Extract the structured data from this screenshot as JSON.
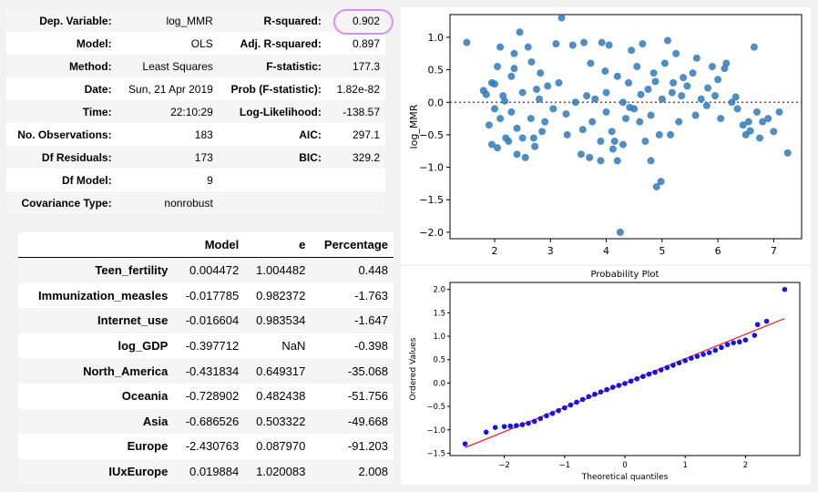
{
  "summary": {
    "rows": [
      {
        "l1": "Dep. Variable:",
        "v1": "log_MMR",
        "l2": "R-squared:",
        "v2": "0.902"
      },
      {
        "l1": "Model:",
        "v1": "OLS",
        "l2": "Adj. R-squared:",
        "v2": "0.897"
      },
      {
        "l1": "Method:",
        "v1": "Least Squares",
        "l2": "F-statistic:",
        "v2": "177.3"
      },
      {
        "l1": "Date:",
        "v1": "Sun, 21 Apr 2019",
        "l2": "Prob (F-statistic):",
        "v2": "1.82e-82"
      },
      {
        "l1": "Time:",
        "v1": "22:10:29",
        "l2": "Log-Likelihood:",
        "v2": "-138.57"
      },
      {
        "l1": "No. Observations:",
        "v1": "183",
        "l2": "AIC:",
        "v2": "297.1"
      },
      {
        "l1": "Df Residuals:",
        "v1": "173",
        "l2": "BIC:",
        "v2": "329.2"
      },
      {
        "l1": "Df Model:",
        "v1": "9",
        "l2": "",
        "v2": ""
      },
      {
        "l1": "Covariance Type:",
        "v1": "nonrobust",
        "l2": "",
        "v2": ""
      }
    ]
  },
  "coef_table": {
    "headers": [
      "",
      "Model",
      "e",
      "Percentage"
    ],
    "rows": [
      [
        "Teen_fertility",
        "0.004472",
        "1.004482",
        "0.448"
      ],
      [
        "Immunization_measles",
        "-0.017785",
        "0.982372",
        "-1.763"
      ],
      [
        "Internet_use",
        "-0.016604",
        "0.983534",
        "-1.647"
      ],
      [
        "log_GDP",
        "-0.397712",
        "NaN",
        "-0.398"
      ],
      [
        "North_America",
        "-0.431834",
        "0.649317",
        "-35.068"
      ],
      [
        "Oceania",
        "-0.728902",
        "0.482438",
        "-51.756"
      ],
      [
        "Asia",
        "-0.686526",
        "0.503322",
        "-49.668"
      ],
      [
        "Europe",
        "-2.430763",
        "0.087970",
        "-91.203"
      ],
      [
        "IUxEurope",
        "0.019884",
        "1.020083",
        "2.008"
      ]
    ]
  },
  "chart_data": [
    {
      "type": "scatter",
      "title": "",
      "xlabel": "",
      "ylabel": "log_MMR",
      "xlim": [
        1.2,
        7.5
      ],
      "ylim": [
        -2.1,
        1.35
      ],
      "xticks": [
        "2",
        "3",
        "4",
        "5",
        "6",
        "7"
      ],
      "yticks": [
        "1.0",
        "0.5",
        "0.0",
        "−0.5",
        "−1.0",
        "−1.5",
        "−2.0"
      ],
      "reference_line": {
        "y": 0,
        "style": "dotted"
      },
      "color": "#2f7ab9",
      "points": [
        [
          1.5,
          0.92
        ],
        [
          1.8,
          0.18
        ],
        [
          1.85,
          0.12
        ],
        [
          1.9,
          -0.35
        ],
        [
          1.95,
          0.3
        ],
        [
          2.0,
          0.28
        ],
        [
          2.0,
          -0.1
        ],
        [
          1.95,
          -0.65
        ],
        [
          2.05,
          0.55
        ],
        [
          2.05,
          -0.7
        ],
        [
          2.1,
          0.85
        ],
        [
          2.1,
          -0.25
        ],
        [
          2.15,
          0.1
        ],
        [
          2.2,
          -0.55
        ],
        [
          2.25,
          -0.6
        ],
        [
          2.3,
          0.4
        ],
        [
          2.3,
          -0.15
        ],
        [
          2.35,
          0.75
        ],
        [
          2.4,
          -0.8
        ],
        [
          2.4,
          -0.4
        ],
        [
          2.45,
          1.08
        ],
        [
          2.5,
          0.15
        ],
        [
          2.5,
          -0.55
        ],
        [
          2.55,
          -0.85
        ],
        [
          2.6,
          0.85
        ],
        [
          2.65,
          -0.25
        ],
        [
          2.7,
          -0.55
        ],
        [
          2.75,
          0.2
        ],
        [
          2.8,
          0.05
        ],
        [
          2.85,
          -0.45
        ],
        [
          2.9,
          -0.3
        ],
        [
          2.95,
          0.25
        ],
        [
          3.05,
          -0.1
        ],
        [
          3.1,
          0.9
        ],
        [
          3.15,
          0.3
        ],
        [
          3.2,
          1.3
        ],
        [
          3.3,
          -0.5
        ],
        [
          3.4,
          0.88
        ],
        [
          3.45,
          0.0
        ],
        [
          3.55,
          -0.8
        ],
        [
          3.6,
          0.92
        ],
        [
          3.65,
          0.1
        ],
        [
          3.7,
          -0.85
        ],
        [
          3.75,
          -0.3
        ],
        [
          3.8,
          0.05
        ],
        [
          3.9,
          -0.6
        ],
        [
          3.9,
          -0.9
        ],
        [
          4.0,
          0.15
        ],
        [
          4.0,
          -0.15
        ],
        [
          4.05,
          0.88
        ],
        [
          4.1,
          -0.45
        ],
        [
          4.15,
          -0.6
        ],
        [
          4.2,
          0.4
        ],
        [
          4.2,
          -0.9
        ],
        [
          4.25,
          -2.0
        ],
        [
          4.3,
          0.0
        ],
        [
          4.3,
          -0.65
        ],
        [
          4.35,
          -0.25
        ],
        [
          4.4,
          0.3
        ],
        [
          4.45,
          0.8
        ],
        [
          4.5,
          -0.1
        ],
        [
          4.55,
          0.55
        ],
        [
          4.6,
          -0.3
        ],
        [
          4.65,
          0.9
        ],
        [
          4.7,
          -0.6
        ],
        [
          4.75,
          0.2
        ],
        [
          4.8,
          -0.9
        ],
        [
          4.8,
          -0.2
        ],
        [
          4.85,
          0.45
        ],
        [
          4.9,
          -1.3
        ],
        [
          4.95,
          -0.5
        ],
        [
          5.0,
          0.05
        ],
        [
          5.05,
          0.6
        ],
        [
          5.1,
          0.95
        ],
        [
          5.15,
          -0.5
        ],
        [
          5.2,
          0.3
        ],
        [
          5.25,
          0.75
        ],
        [
          5.3,
          -0.3
        ],
        [
          5.35,
          0.1
        ],
        [
          5.45,
          0.25
        ],
        [
          5.55,
          0.45
        ],
        [
          5.6,
          -0.2
        ],
        [
          5.7,
          0.05
        ],
        [
          5.8,
          -0.05
        ],
        [
          5.9,
          0.55
        ],
        [
          5.95,
          0.1
        ],
        [
          6.0,
          0.35
        ],
        [
          6.05,
          -0.25
        ],
        [
          6.15,
          0.6
        ],
        [
          6.25,
          0.0
        ],
        [
          6.35,
          -0.1
        ],
        [
          6.45,
          -0.35
        ],
        [
          6.5,
          -0.5
        ],
        [
          6.55,
          -0.3
        ],
        [
          6.65,
          0.85
        ],
        [
          6.7,
          -0.15
        ],
        [
          6.75,
          -0.55
        ],
        [
          6.8,
          -0.3
        ],
        [
          6.9,
          -0.25
        ],
        [
          7.0,
          -0.45
        ],
        [
          7.1,
          -0.15
        ],
        [
          7.25,
          -0.78
        ],
        [
          4.98,
          -1.22
        ],
        [
          4.12,
          -0.72
        ],
        [
          3.72,
          0.6
        ],
        [
          3.92,
          0.92
        ],
        [
          5.62,
          0.68
        ],
        [
          6.12,
          0.52
        ],
        [
          2.18,
          0.02
        ],
        [
          2.82,
          0.45
        ],
        [
          2.66,
          0.62
        ],
        [
          3.58,
          -0.42
        ],
        [
          4.62,
          0.12
        ],
        [
          5.38,
          0.38
        ],
        [
          5.82,
          0.22
        ],
        [
          6.32,
          0.08
        ],
        [
          4.42,
          -0.08
        ],
        [
          3.28,
          -0.18
        ],
        [
          2.72,
          -0.68
        ],
        [
          6.58,
          -0.44
        ],
        [
          5.18,
          0.15
        ],
        [
          4.88,
          0.32
        ],
        [
          3.98,
          0.48
        ],
        [
          2.35,
          0.52
        ]
      ]
    },
    {
      "type": "scatter",
      "title": "Probability Plot",
      "xlabel": "Theoretical quantiles",
      "ylabel": "Ordered Values",
      "xlim": [
        -2.9,
        2.9
      ],
      "ylim": [
        -1.55,
        2.15
      ],
      "xticks": [
        "−2",
        "−1",
        "0",
        "1",
        "2"
      ],
      "yticks": [
        "2.0",
        "1.5",
        "1.0",
        "0.5",
        "0.0",
        "−0.5",
        "−1.0",
        "−1.5"
      ],
      "fit_line": {
        "x": [
          -2.65,
          2.65
        ],
        "y": [
          -1.38,
          1.38
        ],
        "color": "#e8262d"
      },
      "color": "#1414e8",
      "n_points": 183,
      "points": [
        [
          -2.65,
          -1.3
        ],
        [
          -2.3,
          -1.05
        ],
        [
          -2.15,
          -0.95
        ],
        [
          -2.0,
          -0.93
        ],
        [
          -1.9,
          -0.92
        ],
        [
          -1.8,
          -0.91
        ],
        [
          -1.7,
          -0.89
        ],
        [
          -1.6,
          -0.86
        ],
        [
          -1.5,
          -0.82
        ],
        [
          -1.4,
          -0.76
        ],
        [
          -1.3,
          -0.7
        ],
        [
          -1.2,
          -0.65
        ],
        [
          -1.1,
          -0.59
        ],
        [
          -1.0,
          -0.53
        ],
        [
          -0.9,
          -0.47
        ],
        [
          -0.8,
          -0.41
        ],
        [
          -0.7,
          -0.35
        ],
        [
          -0.6,
          -0.29
        ],
        [
          -0.5,
          -0.24
        ],
        [
          -0.4,
          -0.19
        ],
        [
          -0.3,
          -0.14
        ],
        [
          -0.2,
          -0.09
        ],
        [
          -0.1,
          -0.05
        ],
        [
          0.0,
          -0.01
        ],
        [
          0.1,
          0.04
        ],
        [
          0.2,
          0.09
        ],
        [
          0.3,
          0.14
        ],
        [
          0.4,
          0.19
        ],
        [
          0.5,
          0.23
        ],
        [
          0.6,
          0.28
        ],
        [
          0.7,
          0.33
        ],
        [
          0.8,
          0.38
        ],
        [
          0.9,
          0.43
        ],
        [
          1.0,
          0.48
        ],
        [
          1.1,
          0.53
        ],
        [
          1.2,
          0.57
        ],
        [
          1.3,
          0.61
        ],
        [
          1.4,
          0.65
        ],
        [
          1.5,
          0.7
        ],
        [
          1.6,
          0.76
        ],
        [
          1.7,
          0.82
        ],
        [
          1.8,
          0.86
        ],
        [
          1.9,
          0.88
        ],
        [
          2.0,
          0.92
        ],
        [
          2.15,
          1.02
        ],
        [
          2.2,
          1.25
        ],
        [
          2.35,
          1.32
        ],
        [
          2.65,
          2.0
        ]
      ]
    }
  ]
}
